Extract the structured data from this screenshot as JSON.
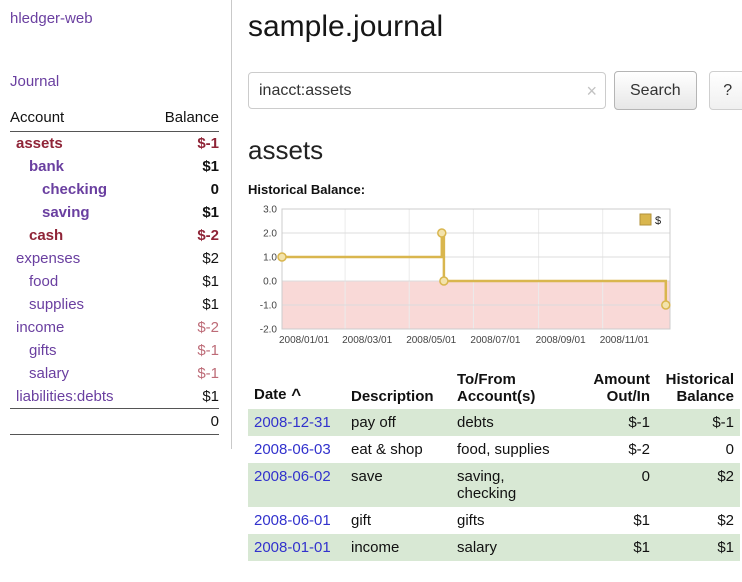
{
  "colors": {
    "accent_purple": "#6a3fa0",
    "link_blue": "#3232cd",
    "negative_dark": "#8f2437",
    "negative_soft": "#bd6b77",
    "negative_red": "#b23434",
    "row_green": "#d8e8d4",
    "chart_line": "#d9b64e",
    "chart_marker_fill": "#f3e3ac",
    "chart_negative_fill": "#f9d9d7"
  },
  "app": {
    "title": "hledger-web"
  },
  "sidebar": {
    "journal_link": "Journal",
    "headers": {
      "account": "Account",
      "balance": "Balance"
    },
    "accounts": [
      {
        "name": "assets",
        "balance": "$-1",
        "depth": 0,
        "bold": true,
        "name_class": "neg",
        "bal_class": "neg"
      },
      {
        "name": "bank",
        "balance": "$1",
        "depth": 1,
        "bold": true,
        "name_class": "",
        "bal_class": ""
      },
      {
        "name": "checking",
        "balance": "0",
        "depth": 2,
        "bold": true,
        "name_class": "",
        "bal_class": ""
      },
      {
        "name": "saving",
        "balance": "$1",
        "depth": 2,
        "bold": true,
        "name_class": "",
        "bal_class": ""
      },
      {
        "name": "cash",
        "balance": "$-2",
        "depth": 1,
        "bold": true,
        "name_class": "neg",
        "bal_class": "neg"
      },
      {
        "name": "expenses",
        "balance": "$2",
        "depth": 0,
        "bold": false,
        "name_class": "",
        "bal_class": ""
      },
      {
        "name": "food",
        "balance": "$1",
        "depth": 1,
        "bold": false,
        "name_class": "",
        "bal_class": ""
      },
      {
        "name": "supplies",
        "balance": "$1",
        "depth": 1,
        "bold": false,
        "name_class": "",
        "bal_class": ""
      },
      {
        "name": "income",
        "balance": "$-2",
        "depth": 0,
        "bold": false,
        "name_class": "",
        "bal_class": "negsoft"
      },
      {
        "name": "gifts",
        "balance": "$-1",
        "depth": 1,
        "bold": false,
        "name_class": "",
        "bal_class": "negsoft"
      },
      {
        "name": "salary",
        "balance": "$-1",
        "depth": 1,
        "bold": false,
        "name_class": "",
        "bal_class": "negsoft"
      },
      {
        "name": "liabilities:debts",
        "balance": "$1",
        "depth": 0,
        "bold": false,
        "name_class": "",
        "bal_class": ""
      }
    ],
    "total": "0"
  },
  "main": {
    "title": "sample.journal",
    "search": {
      "value": "inacct:assets",
      "clear_icon": "×",
      "button_label": "Search",
      "help_label": "?"
    },
    "account_heading": "assets"
  },
  "register": {
    "sort_icon": "^",
    "headers": [
      {
        "label": "Date",
        "align": "left",
        "sort": "asc"
      },
      {
        "label": "Description",
        "align": "left"
      },
      {
        "label": "To/From\nAccount(s)",
        "align": "left"
      },
      {
        "label": "Amount\nOut/In",
        "align": "right"
      },
      {
        "label": "Historical\nBalance",
        "align": "right"
      }
    ],
    "rows": [
      {
        "date": "2008-12-31",
        "description": "pay off",
        "accounts": "debts",
        "amount": "$-1",
        "balance": "$-1"
      },
      {
        "date": "2008-06-03",
        "description": "eat & shop",
        "accounts": "food, supplies",
        "amount": "$-2",
        "balance": "0"
      },
      {
        "date": "2008-06-02",
        "description": "save",
        "accounts": "saving,\nchecking",
        "amount": "0",
        "balance": "$2"
      },
      {
        "date": "2008-06-01",
        "description": "gift",
        "accounts": "gifts",
        "amount": "$1",
        "balance": "$2"
      },
      {
        "date": "2008-01-01",
        "description": "income",
        "accounts": "salary",
        "amount": "$1",
        "balance": "$1"
      }
    ]
  },
  "chart_data": {
    "type": "line",
    "step": true,
    "title": "Historical Balance:",
    "x_range": [
      "2008-01-01",
      "2009-01-04"
    ],
    "ylim": [
      -2,
      3
    ],
    "yticks": [
      "3.0",
      "2.0",
      "1.0",
      "0.0",
      "-1.0",
      "-2.0"
    ],
    "xticks": [
      "2008/01/01",
      "2008/03/01",
      "2008/05/01",
      "2008/07/01",
      "2008/09/01",
      "2008/11/01"
    ],
    "legend": {
      "label": "$",
      "position": "top-right"
    },
    "grid": true,
    "negative_region_shaded": true,
    "series": [
      {
        "name": "$",
        "points": [
          {
            "x": "2008-01-01",
            "y": 1
          },
          {
            "x": "2008-06-01",
            "y": 2
          },
          {
            "x": "2008-06-03",
            "y": 0
          },
          {
            "x": "2008-12-31",
            "y": -1
          }
        ]
      }
    ]
  }
}
